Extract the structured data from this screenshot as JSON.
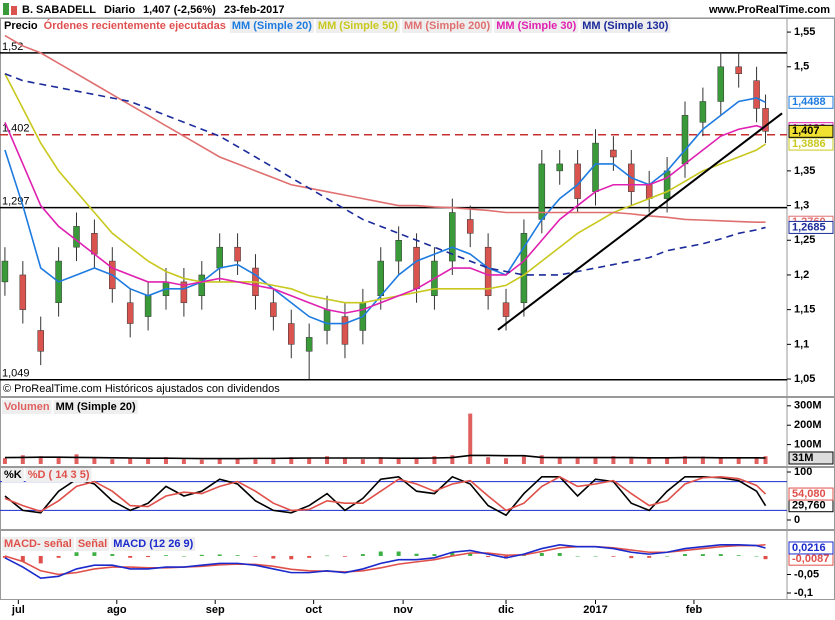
{
  "header": {
    "title": "B. SABADELL",
    "period": "Diario",
    "quote": "1,407 (-2,56%)",
    "date": "23-feb-2017",
    "site": "www.ProRealTime.com"
  },
  "chart_data": [
    {
      "type": "candlestick",
      "legend": "Precio",
      "note": "Órdenes recientemente ejecutadas",
      "footer": "© ProRealTime.com Históricos ajustados con dividendos",
      "x": [
        0,
        4,
        8,
        12,
        16,
        20,
        24,
        28,
        32,
        36,
        40,
        44,
        48,
        52,
        56,
        60,
        64,
        68,
        72,
        76,
        80,
        84,
        88,
        92,
        96,
        100,
        104,
        108,
        112,
        116,
        120,
        124,
        128,
        132,
        136,
        140,
        144,
        148,
        152,
        156,
        160,
        164,
        168,
        170
      ],
      "open": [
        1.19,
        1.2,
        1.12,
        1.16,
        1.24,
        1.26,
        1.22,
        1.16,
        1.14,
        1.17,
        1.19,
        1.17,
        1.21,
        1.24,
        1.21,
        1.16,
        1.13,
        1.09,
        1.12,
        1.14,
        1.12,
        1.17,
        1.22,
        1.24,
        1.17,
        1.22,
        1.28,
        1.24,
        1.16,
        1.16,
        1.28,
        1.35,
        1.36,
        1.32,
        1.38,
        1.36,
        1.33,
        1.31,
        1.36,
        1.42,
        1.45,
        1.5,
        1.48,
        1.44
      ],
      "high": [
        1.24,
        1.22,
        1.14,
        1.24,
        1.29,
        1.28,
        1.24,
        1.18,
        1.19,
        1.21,
        1.21,
        1.22,
        1.26,
        1.26,
        1.23,
        1.18,
        1.15,
        1.13,
        1.17,
        1.16,
        1.18,
        1.24,
        1.27,
        1.26,
        1.24,
        1.31,
        1.3,
        1.26,
        1.18,
        1.28,
        1.38,
        1.38,
        1.38,
        1.41,
        1.4,
        1.38,
        1.35,
        1.37,
        1.45,
        1.47,
        1.52,
        1.52,
        1.5,
        1.46
      ],
      "low": [
        1.17,
        1.13,
        1.07,
        1.14,
        1.22,
        1.21,
        1.16,
        1.11,
        1.12,
        1.15,
        1.14,
        1.15,
        1.19,
        1.2,
        1.15,
        1.12,
        1.08,
        1.05,
        1.1,
        1.08,
        1.1,
        1.15,
        1.2,
        1.16,
        1.15,
        1.2,
        1.24,
        1.15,
        1.12,
        1.14,
        1.26,
        1.33,
        1.29,
        1.3,
        1.35,
        1.3,
        1.29,
        1.29,
        1.34,
        1.4,
        1.43,
        1.47,
        1.42,
        1.39
      ],
      "close": [
        1.22,
        1.15,
        1.09,
        1.22,
        1.27,
        1.23,
        1.18,
        1.13,
        1.17,
        1.19,
        1.16,
        1.2,
        1.24,
        1.22,
        1.17,
        1.14,
        1.1,
        1.11,
        1.15,
        1.1,
        1.16,
        1.22,
        1.25,
        1.18,
        1.22,
        1.29,
        1.26,
        1.17,
        1.14,
        1.26,
        1.36,
        1.36,
        1.31,
        1.39,
        1.37,
        1.32,
        1.31,
        1.35,
        1.43,
        1.45,
        1.5,
        1.49,
        1.44,
        1.407
      ],
      "close_label": "1,407",
      "up_color": "#3a9a3a",
      "down_color": "#d9534f",
      "series": [
        {
          "name": "MM (Simple 20)",
          "color": "#1e7be0",
          "last_value": 1.4488,
          "last_label": "1,4488",
          "values": [
            1.38,
            1.3,
            1.21,
            1.19,
            1.2,
            1.21,
            1.2,
            1.18,
            1.17,
            1.18,
            1.18,
            1.19,
            1.21,
            1.215,
            1.2,
            1.18,
            1.16,
            1.14,
            1.13,
            1.13,
            1.14,
            1.17,
            1.2,
            1.22,
            1.23,
            1.24,
            1.23,
            1.21,
            1.2,
            1.24,
            1.28,
            1.31,
            1.33,
            1.36,
            1.36,
            1.34,
            1.33,
            1.35,
            1.38,
            1.41,
            1.43,
            1.45,
            1.455,
            1.4488
          ]
        },
        {
          "name": "MM (Simple 50)",
          "color": "#c8c81e",
          "last_value": 1.3886,
          "last_label": "1,3886",
          "values": [
            1.49,
            1.44,
            1.39,
            1.35,
            1.32,
            1.29,
            1.26,
            1.24,
            1.22,
            1.205,
            1.195,
            1.19,
            1.19,
            1.19,
            1.19,
            1.185,
            1.18,
            1.17,
            1.165,
            1.16,
            1.16,
            1.165,
            1.17,
            1.175,
            1.18,
            1.18,
            1.18,
            1.18,
            1.185,
            1.2,
            1.22,
            1.24,
            1.26,
            1.275,
            1.29,
            1.3,
            1.31,
            1.32,
            1.335,
            1.35,
            1.36,
            1.37,
            1.38,
            1.3886
          ]
        },
        {
          "name": "MM (Simple 200)",
          "color": "#e07070",
          "last_value": 1.276,
          "last_label": "1,2760",
          "values": [
            1.545,
            1.53,
            1.52,
            1.505,
            1.49,
            1.475,
            1.46,
            1.445,
            1.43,
            1.415,
            1.4,
            1.385,
            1.37,
            1.36,
            1.35,
            1.34,
            1.33,
            1.325,
            1.32,
            1.315,
            1.31,
            1.305,
            1.3,
            1.3,
            1.298,
            1.297,
            1.295,
            1.293,
            1.29,
            1.29,
            1.29,
            1.29,
            1.29,
            1.29,
            1.29,
            1.288,
            1.285,
            1.283,
            1.28,
            1.279,
            1.278,
            1.277,
            1.276,
            1.276
          ]
        },
        {
          "name": "MM (Simple 30)",
          "color": "#e020b0",
          "last_value": 1.4108,
          "last_label": "1,4108",
          "values": [
            1.42,
            1.36,
            1.3,
            1.27,
            1.25,
            1.23,
            1.21,
            1.2,
            1.19,
            1.19,
            1.185,
            1.19,
            1.195,
            1.19,
            1.185,
            1.18,
            1.17,
            1.16,
            1.15,
            1.145,
            1.15,
            1.16,
            1.17,
            1.18,
            1.195,
            1.21,
            1.21,
            1.2,
            1.2,
            1.22,
            1.25,
            1.28,
            1.3,
            1.32,
            1.33,
            1.33,
            1.33,
            1.34,
            1.36,
            1.38,
            1.4,
            1.41,
            1.415,
            1.4108
          ]
        },
        {
          "name": "MM (Simple 130)",
          "color": "#1a2a9a",
          "dash": true,
          "last_value": 1.2685,
          "last_label": "1,2685",
          "values": [
            1.49,
            1.48,
            1.475,
            1.47,
            1.465,
            1.46,
            1.455,
            1.45,
            1.44,
            1.43,
            1.42,
            1.41,
            1.4,
            1.385,
            1.37,
            1.355,
            1.34,
            1.325,
            1.31,
            1.295,
            1.28,
            1.27,
            1.26,
            1.25,
            1.24,
            1.23,
            1.22,
            1.21,
            1.205,
            1.2,
            1.2,
            1.2,
            1.205,
            1.21,
            1.215,
            1.22,
            1.225,
            1.235,
            1.24,
            1.245,
            1.252,
            1.26,
            1.265,
            1.2685
          ]
        }
      ],
      "levels": [
        {
          "value": 1.52,
          "label": "1,52",
          "color": "#000000"
        },
        {
          "value": 1.402,
          "label": "1,402",
          "color": "#c83030",
          "dash": true
        },
        {
          "value": 1.297,
          "label": "1,297",
          "color": "#000000"
        },
        {
          "value": 1.049,
          "label": "1,049",
          "color": "#000000"
        }
      ],
      "trendline": {
        "x": [
          110.2,
          173.7
        ],
        "y": [
          1.121,
          1.433
        ]
      },
      "xlim": [
        -1.1,
        174.8
      ],
      "ylim": [
        1.027,
        1.553
      ],
      "yticks": [
        {
          "value": 1.55,
          "label": "1,55"
        },
        {
          "value": 1.5,
          "label": "1,5"
        },
        {
          "value": 1.35,
          "label": "1,35"
        },
        {
          "value": 1.3,
          "label": "1,3"
        },
        {
          "value": 1.25,
          "label": "1,25"
        },
        {
          "value": 1.2,
          "label": "1,2"
        },
        {
          "value": 1.15,
          "label": "1,15"
        },
        {
          "value": 1.1,
          "label": "1,1"
        },
        {
          "value": 1.05,
          "label": "1,05"
        }
      ]
    },
    {
      "type": "bar",
      "x": [
        0,
        4,
        8,
        12,
        16,
        20,
        24,
        28,
        32,
        36,
        40,
        44,
        48,
        52,
        56,
        60,
        64,
        68,
        72,
        76,
        80,
        84,
        88,
        92,
        96,
        100,
        104,
        108,
        112,
        116,
        120,
        124,
        128,
        132,
        136,
        140,
        144,
        148,
        152,
        156,
        160,
        164,
        168,
        170
      ],
      "series": [
        {
          "name": "Volumen",
          "kind": "bar",
          "color": "#e06060",
          "values": [
            30,
            45,
            40,
            35,
            50,
            30,
            25,
            30,
            28,
            35,
            25,
            22,
            30,
            28,
            25,
            30,
            35,
            30,
            40,
            32,
            25,
            35,
            30,
            28,
            40,
            45,
            260,
            35,
            30,
            38,
            45,
            35,
            30,
            32,
            40,
            30,
            28,
            35,
            40,
            38,
            30,
            35,
            32,
            40
          ]
        },
        {
          "name": "MM (Simple 20)",
          "color": "#000000",
          "last_value": 31,
          "last_label": "31M",
          "values": [
            33,
            34,
            35,
            35,
            34,
            33,
            32,
            31,
            30,
            30,
            29,
            28,
            28,
            28,
            29,
            29,
            30,
            31,
            31,
            31,
            31,
            31,
            30,
            30,
            31,
            33,
            44,
            44,
            43,
            43,
            34,
            33,
            33,
            33,
            33,
            33,
            32,
            32,
            33,
            33,
            32,
            32,
            32,
            31
          ]
        }
      ],
      "xlim": [
        -1.1,
        174.8
      ],
      "ylim": [
        0,
        330
      ],
      "yticks": [
        {
          "value": 300,
          "label": "300M"
        },
        {
          "value": 200,
          "label": "200M"
        },
        {
          "value": 100,
          "label": "100M"
        }
      ]
    },
    {
      "type": "line",
      "x": [
        0,
        4,
        8,
        12,
        16,
        20,
        24,
        28,
        32,
        36,
        40,
        44,
        48,
        52,
        56,
        60,
        64,
        68,
        72,
        76,
        80,
        84,
        88,
        92,
        96,
        100,
        104,
        108,
        112,
        116,
        120,
        124,
        128,
        132,
        136,
        140,
        144,
        148,
        152,
        156,
        160,
        164,
        168,
        170
      ],
      "series": [
        {
          "name": "%K",
          "color": "#000000",
          "last_value": 29.76,
          "last_label": "29,760",
          "values": [
            50,
            20,
            15,
            60,
            85,
            75,
            40,
            20,
            35,
            70,
            50,
            60,
            85,
            75,
            40,
            20,
            15,
            30,
            55,
            20,
            45,
            85,
            90,
            60,
            55,
            90,
            75,
            30,
            10,
            55,
            90,
            90,
            50,
            85,
            80,
            35,
            20,
            60,
            90,
            90,
            88,
            82,
            60,
            29.76
          ]
        },
        {
          "name": "%D ( 14 3 5)",
          "color": "#e0504a",
          "last_value": 54.08,
          "last_label": "54,080",
          "values": [
            45,
            30,
            18,
            40,
            70,
            80,
            60,
            30,
            28,
            50,
            58,
            55,
            70,
            80,
            60,
            35,
            20,
            22,
            40,
            35,
            35,
            60,
            85,
            75,
            60,
            75,
            82,
            50,
            20,
            35,
            70,
            90,
            70,
            75,
            82,
            55,
            30,
            40,
            75,
            88,
            90,
            86,
            72,
            54.08
          ]
        }
      ],
      "levels": [
        80,
        20
      ],
      "xlim": [
        -1.1,
        174.8
      ],
      "ylim": [
        0,
        100
      ],
      "yticks": [
        100,
        0
      ]
    },
    {
      "type": "line",
      "x": [
        0,
        4,
        8,
        12,
        16,
        20,
        24,
        28,
        32,
        36,
        40,
        44,
        48,
        52,
        56,
        60,
        64,
        68,
        72,
        76,
        80,
        84,
        88,
        92,
        96,
        100,
        104,
        108,
        112,
        116,
        120,
        124,
        128,
        132,
        136,
        140,
        144,
        148,
        152,
        156,
        160,
        164,
        168,
        170
      ],
      "series": [
        {
          "name": "MACD- señal",
          "kind": "histogram",
          "color": "#e0504a",
          "up_color": "#3cb043",
          "down_color": "#e0504a",
          "last_value": -0.0087,
          "last_label": "-0,0087",
          "values": [
            -0.005,
            -0.015,
            -0.02,
            -0.005,
            0.01,
            0.01,
            0.005,
            -0.005,
            -0.003,
            0.002,
            0,
            0.003,
            0.004,
            0.002,
            -0.002,
            -0.007,
            -0.009,
            -0.005,
            0.001,
            -0.002,
            0.005,
            0.012,
            0.012,
            0.006,
            0.005,
            0.01,
            0.007,
            -0.003,
            -0.007,
            0.002,
            0.008,
            0.008,
            0,
            0,
            -0.002,
            -0.006,
            -0.005,
            0,
            0.005,
            0.005,
            0.005,
            0.002,
            0,
            -0.0087
          ]
        },
        {
          "name": "Señal",
          "color": "#e0504a",
          "values": [
            0.0,
            -0.015,
            -0.04,
            -0.05,
            -0.045,
            -0.035,
            -0.03,
            -0.03,
            -0.032,
            -0.032,
            -0.03,
            -0.028,
            -0.024,
            -0.022,
            -0.023,
            -0.028,
            -0.036,
            -0.04,
            -0.041,
            -0.043,
            -0.04,
            -0.032,
            -0.022,
            -0.016,
            -0.01,
            0.0,
            0.008,
            0.008,
            0.002,
            0.003,
            0.012,
            0.022,
            0.025,
            0.025,
            0.022,
            0.016,
            0.01,
            0.01,
            0.015,
            0.02,
            0.025,
            0.028,
            0.028,
            0.0303
          ]
        },
        {
          "name": "MACD (12 26 9)",
          "color": "#1a2acc",
          "last_value": 0.0216,
          "last_label": "0,0216",
          "values": [
            -0.005,
            -0.03,
            -0.06,
            -0.055,
            -0.035,
            -0.025,
            -0.025,
            -0.035,
            -0.035,
            -0.03,
            -0.03,
            -0.025,
            -0.02,
            -0.02,
            -0.025,
            -0.035,
            -0.045,
            -0.045,
            -0.04,
            -0.045,
            -0.035,
            -0.02,
            -0.01,
            -0.01,
            -0.005,
            0.01,
            0.015,
            0.005,
            -0.005,
            0.005,
            0.02,
            0.03,
            0.025,
            0.025,
            0.02,
            0.01,
            0.005,
            0.01,
            0.02,
            0.025,
            0.03,
            0.03,
            0.028,
            0.0216
          ]
        }
      ],
      "xlim": [
        -1.1,
        174.8
      ],
      "ylim": [
        -0.1,
        0.062
      ],
      "yticks": [
        {
          "value": -0.05,
          "label": "-0,05"
        },
        {
          "value": -0.1,
          "label": "-0,1"
        }
      ],
      "xticks": [
        {
          "value": 3,
          "label": "jul"
        },
        {
          "value": 25,
          "label": "ago"
        },
        {
          "value": 47,
          "label": "sep"
        },
        {
          "value": 69,
          "label": "oct"
        },
        {
          "value": 89,
          "label": "nov"
        },
        {
          "value": 112,
          "label": "dic"
        },
        {
          "value": 132,
          "label": "2017"
        },
        {
          "value": 154,
          "label": "feb"
        }
      ]
    }
  ]
}
